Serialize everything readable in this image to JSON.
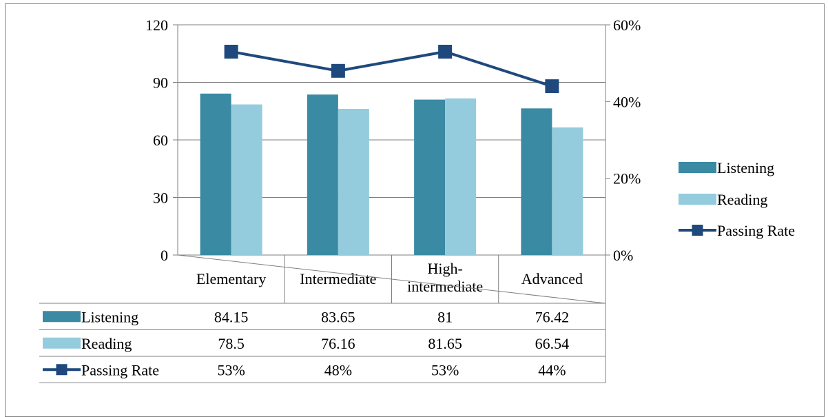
{
  "chart_data": {
    "type": "bar",
    "categories": [
      [
        "Elementary"
      ],
      [
        "Intermediate"
      ],
      [
        "High-",
        "intermediate"
      ],
      [
        "Advanced"
      ]
    ],
    "series": [
      {
        "name": "Listening",
        "type": "bar",
        "axis": "left",
        "color": "#3a8aa3",
        "values": [
          84.15,
          83.65,
          81,
          76.42
        ],
        "labels": [
          "84.15",
          "83.65",
          "81",
          "76.42"
        ]
      },
      {
        "name": "Reading",
        "type": "bar",
        "axis": "left",
        "color": "#94ccdd",
        "values": [
          78.5,
          76.16,
          81.65,
          66.54
        ],
        "labels": [
          "78.5",
          "76.16",
          "81.65",
          "66.54"
        ]
      },
      {
        "name": "Passing Rate",
        "type": "line",
        "axis": "right",
        "color": "#1f497d",
        "marker": "square",
        "values": [
          0.53,
          0.48,
          0.53,
          0.44
        ],
        "labels": [
          "53%",
          "48%",
          "53%",
          "44%"
        ]
      }
    ],
    "y_left": {
      "min": 0,
      "max": 120,
      "ticks": [
        "0",
        "30",
        "60",
        "90",
        "120"
      ]
    },
    "y_right": {
      "min": 0,
      "max": 0.6,
      "ticks": [
        "0%",
        "20%",
        "40%",
        "60%"
      ]
    },
    "grid": true,
    "legend_position": "right",
    "data_table": true
  }
}
